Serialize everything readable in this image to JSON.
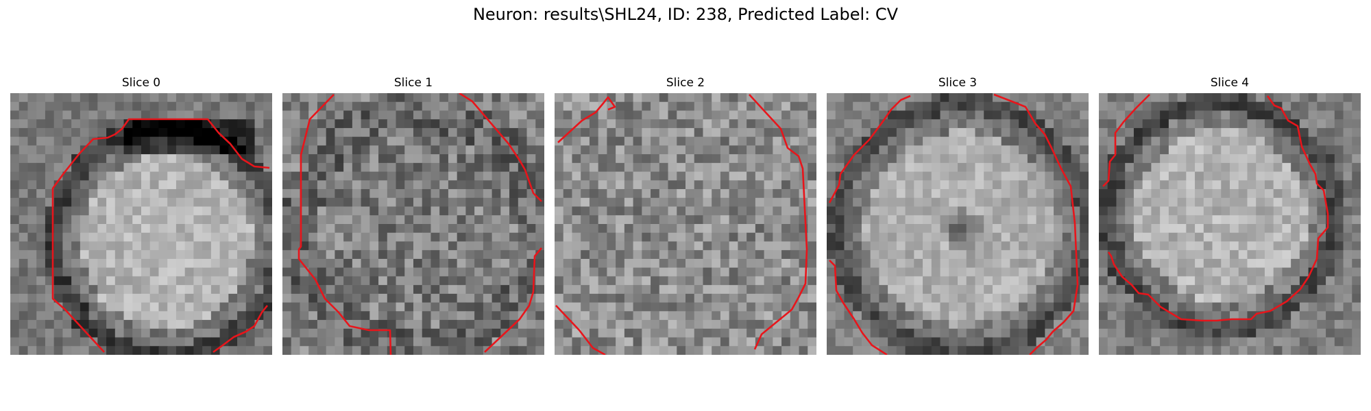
{
  "figure": {
    "title": "Neuron: results\\SHL24, ID: 238, Predicted Label: CV"
  },
  "panels": [
    {
      "title": "Slice 0"
    },
    {
      "title": "Slice 1"
    },
    {
      "title": "Slice 2"
    },
    {
      "title": "Slice 3"
    },
    {
      "title": "Slice 4"
    }
  ],
  "colors": {
    "contour": "#e8151b",
    "background": "#ffffff"
  }
}
